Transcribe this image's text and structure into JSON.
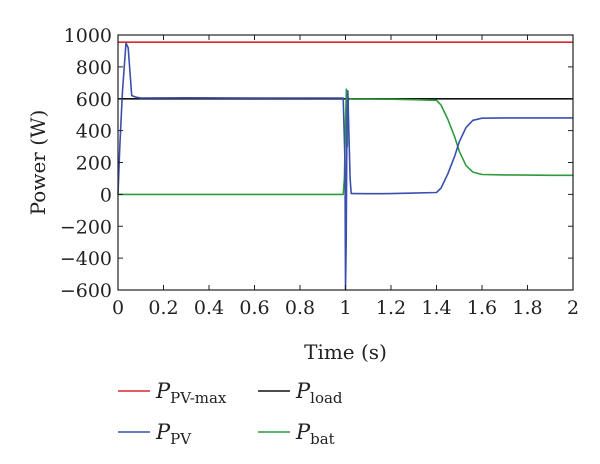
{
  "chart_data": {
    "type": "line",
    "xlabel": "Time (s)",
    "ylabel": "Power (W)",
    "xlim": [
      0,
      2
    ],
    "ylim": [
      -600,
      1000
    ],
    "xticks": [
      "0",
      "0.2",
      "0.4",
      "0.6",
      "0.8",
      "1",
      "1.2",
      "1.4",
      "1.6",
      "1.8",
      "2"
    ],
    "yticks": [
      "1000",
      "800",
      "600",
      "400",
      "200",
      "0",
      "−200",
      "−400",
      "−600"
    ],
    "grid": false,
    "legend_position": "bottom",
    "series": [
      {
        "name": "P_PV-max",
        "label_main": "P",
        "label_sub": "PV-max",
        "color": "#d62a2a",
        "x": [
          0,
          2
        ],
        "y": [
          955,
          955
        ]
      },
      {
        "name": "P_load",
        "label_main": "P",
        "label_sub": "load",
        "color": "#111111",
        "x": [
          0,
          2
        ],
        "y": [
          600,
          600
        ]
      },
      {
        "name": "P_PV",
        "label_main": "P",
        "label_sub": "PV",
        "color": "#3a4fb0",
        "x": [
          0,
          0.008,
          0.02,
          0.035,
          0.045,
          0.06,
          0.08,
          0.1,
          0.3,
          0.6,
          0.9,
          0.99,
          0.998,
          1.0,
          1.003,
          1.006,
          1.01,
          1.02,
          1.025,
          1.03,
          1.1,
          1.2,
          1.3,
          1.4,
          1.42,
          1.45,
          1.48,
          1.5,
          1.53,
          1.56,
          1.6,
          1.7,
          1.8,
          1.9,
          2.0
        ],
        "y": [
          0,
          300,
          650,
          950,
          920,
          620,
          610,
          605,
          606,
          604,
          605,
          604,
          200,
          -600,
          -300,
          400,
          650,
          100,
          5,
          5,
          4,
          5,
          8,
          12,
          40,
          130,
          240,
          330,
          420,
          465,
          478,
          480,
          480,
          480,
          480
        ]
      },
      {
        "name": "P_bat",
        "label_main": "P",
        "label_sub": "bat",
        "color": "#2e9a3c",
        "x": [
          0,
          0.2,
          0.5,
          0.8,
          0.99,
          0.995,
          1.0,
          1.004,
          1.008,
          1.012,
          1.02,
          1.03,
          1.1,
          1.2,
          1.3,
          1.4,
          1.42,
          1.45,
          1.48,
          1.5,
          1.53,
          1.56,
          1.6,
          1.7,
          1.8,
          1.9,
          2.0
        ],
        "y": [
          0,
          0,
          0,
          0,
          0,
          100,
          450,
          660,
          300,
          590,
          600,
          598,
          598,
          597,
          594,
          590,
          560,
          470,
          360,
          270,
          180,
          140,
          125,
          122,
          121,
          120,
          120
        ]
      }
    ]
  }
}
